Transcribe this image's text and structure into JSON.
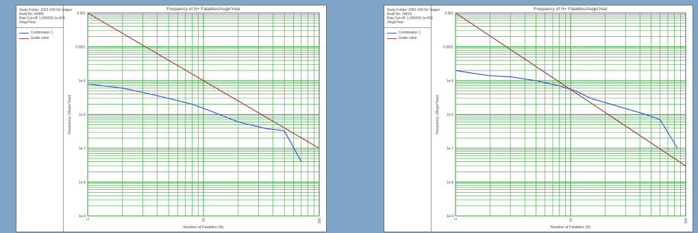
{
  "charts": [
    {
      "info": {
        "study_folder": "Study Folder: 2023 1H3 De Valgen",
        "audit_no": "Audit No: 40485",
        "risk_cutoff": "Risk Cut-off: 1.000000 1e-009",
        "unit": "/Avge/Year"
      },
      "legend": [
        {
          "label": "Combination 1",
          "color": "#3550f0"
        },
        {
          "label": "Guide value",
          "color": "#a23a3a"
        }
      ]
    },
    {
      "info": {
        "study_folder": "Study Folder: 2050 1H3 De Valgen",
        "audit_no": "Audit No: 34533",
        "risk_cutoff": "Risk Cut-off: 1.000000 1e-009",
        "unit": "/Avge/Year"
      },
      "legend": [
        {
          "label": "Combination 1",
          "color": "#3550f0"
        },
        {
          "label": "Guide value",
          "color": "#a23a3a"
        }
      ]
    }
  ],
  "chart_data": [
    {
      "type": "line",
      "title": "Frequency of N+ Fatalities/Avge/Year",
      "xlabel": "Number of Fatalities (N)",
      "ylabel": "Frequency (/Avge/Year)",
      "x_scale": "log",
      "y_scale": "log",
      "xlim": [
        1,
        100
      ],
      "ylim": [
        1e-09,
        0.001
      ],
      "x_tick_labels": [
        "1",
        "10",
        "100"
      ],
      "y_tick_labels": [
        "0.001",
        "0.0001",
        "1e-5",
        "1e-6",
        "1e-7",
        "1e-8",
        "1e-9"
      ],
      "grid": true,
      "grid_color": "#2ca02c",
      "series": [
        {
          "name": "Combination 1",
          "color": "#3550f0",
          "x": [
            1,
            2,
            3,
            5,
            8,
            12,
            20,
            35,
            50,
            70
          ],
          "y": [
            8e-06,
            6e-06,
            4.5e-06,
            3e-06,
            2e-06,
            1.2e-06,
            6e-07,
            3.8e-07,
            3.3e-07,
            4e-08
          ]
        },
        {
          "name": "Guide value",
          "color": "#a23a3a",
          "x": [
            1,
            100
          ],
          "y": [
            0.001,
            1e-07
          ]
        }
      ]
    },
    {
      "type": "line",
      "title": "Frequency of N+ Fatalities/Avge/Year",
      "xlabel": "Number of Fatalities (N)",
      "ylabel": "Frequency (/Avge/Year)",
      "x_scale": "log",
      "y_scale": "log",
      "xlim": [
        1,
        100
      ],
      "ylim": [
        1e-09,
        0.001
      ],
      "x_tick_labels": [
        "1",
        "10",
        "100"
      ],
      "y_tick_labels": [
        "0.001",
        "0.0001",
        "1e-5",
        "1e-6",
        "1e-7",
        "1e-8",
        "1e-9"
      ],
      "grid": true,
      "grid_color": "#2ca02c",
      "series": [
        {
          "name": "Combination 1",
          "color": "#3550f0",
          "x": [
            1,
            1.5,
            2,
            3,
            5,
            8,
            11,
            15,
            25,
            45,
            60,
            85
          ],
          "y": [
            2e-05,
            1.6e-05,
            1.4e-05,
            1.3e-05,
            1e-05,
            7e-06,
            5e-06,
            3e-06,
            1.8e-06,
            1e-06,
            7e-07,
            1e-07
          ]
        },
        {
          "name": "Guide value",
          "color": "#a23a3a",
          "x": [
            1,
            100
          ],
          "y": [
            0.001,
            3e-08
          ]
        }
      ]
    }
  ]
}
